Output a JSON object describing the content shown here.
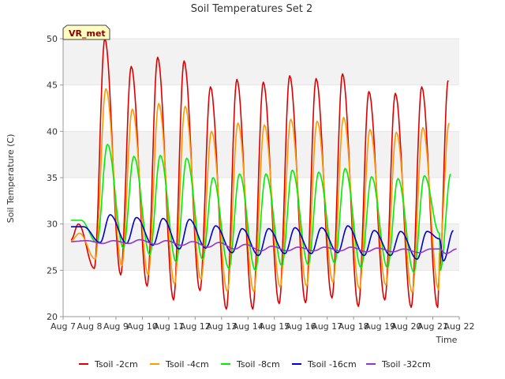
{
  "chart_data": {
    "type": "line",
    "title": "Soil Temperatures Set 2",
    "xlabel": "Time",
    "ylabel": "Soil Temperature (C)",
    "annotation": "VR_met",
    "xlim": [
      7.0,
      22.0
    ],
    "ylim": [
      20,
      50
    ],
    "x_ticks": [
      7,
      8,
      9,
      10,
      11,
      12,
      13,
      14,
      15,
      16,
      17,
      18,
      19,
      20,
      21,
      22
    ],
    "x_tick_labels": [
      "Aug 7",
      "Aug 8",
      "Aug 9",
      "Aug 10",
      "Aug 11",
      "Aug 12",
      "Aug 13",
      "Aug 14",
      "Aug 15",
      "Aug 16",
      "Aug 17",
      "Aug 18",
      "Aug 19",
      "Aug 20",
      "Aug 21",
      "Aug 22"
    ],
    "y_ticks": [
      20,
      25,
      30,
      35,
      40,
      45,
      50
    ],
    "grid": "horizontal bands",
    "legend_position": "bottom",
    "days": [
      7,
      8,
      9,
      10,
      11,
      12,
      13,
      14,
      15,
      16,
      17,
      18,
      19,
      20,
      21
    ],
    "series": [
      {
        "name": "Tsoil -2cm",
        "color": "#dd0000",
        "start": 28.3,
        "end": 25.0,
        "end_x": 21.25,
        "max_x_offset": 0.58,
        "min_x_offset": 0.18,
        "daily_max": [
          30.0,
          50.0,
          47.0,
          48.0,
          47.6,
          44.8,
          45.6,
          45.3,
          46.0,
          45.7,
          46.2,
          44.3,
          44.1,
          44.8,
          45.5
        ],
        "daily_min": [
          28.0,
          25.2,
          24.5,
          23.3,
          21.8,
          22.8,
          20.8,
          20.8,
          21.4,
          21.5,
          22.0,
          21.1,
          21.8,
          21.0,
          21.0
        ]
      },
      {
        "name": "Tsoil -4cm",
        "color": "#ff9900",
        "start": 28.2,
        "end": 26.8,
        "end_x": 21.25,
        "max_x_offset": 0.62,
        "min_x_offset": 0.22,
        "daily_max": [
          29.0,
          44.6,
          42.4,
          43.0,
          42.7,
          40.0,
          40.9,
          40.7,
          41.3,
          41.1,
          41.5,
          40.2,
          39.9,
          40.4,
          40.9
        ],
        "daily_min": [
          28.0,
          26.2,
          25.5,
          24.5,
          23.5,
          24.0,
          22.7,
          22.7,
          23.2,
          23.3,
          23.7,
          23.0,
          23.4,
          22.6,
          22.9
        ]
      },
      {
        "name": "Tsoil -8cm",
        "color": "#00ee00",
        "start": 30.4,
        "end": 29.0,
        "end_x": 21.25,
        "max_x_offset": 0.68,
        "min_x_offset": 0.28,
        "daily_max": [
          30.4,
          38.6,
          37.3,
          37.4,
          37.1,
          35.0,
          35.4,
          35.4,
          35.8,
          35.6,
          36.0,
          35.1,
          34.9,
          35.2,
          35.4
        ],
        "daily_min": [
          29.0,
          28.0,
          27.4,
          26.7,
          25.9,
          26.2,
          25.2,
          25.0,
          25.5,
          25.6,
          25.8,
          25.3,
          25.3,
          24.8,
          25.0
        ]
      },
      {
        "name": "Tsoil -16cm",
        "color": "#0000cc",
        "start": 29.7,
        "end": 28.4,
        "end_x": 21.25,
        "max_x_offset": 0.78,
        "min_x_offset": 0.4,
        "daily_max": [
          29.7,
          31.0,
          30.7,
          30.6,
          30.5,
          29.8,
          29.5,
          29.5,
          29.6,
          29.6,
          29.8,
          29.3,
          29.2,
          29.2,
          29.3
        ],
        "daily_min": [
          28.0,
          28.0,
          27.9,
          27.7,
          27.3,
          27.4,
          26.9,
          26.6,
          26.8,
          26.8,
          26.9,
          26.6,
          26.6,
          26.2,
          26.0
        ]
      },
      {
        "name": "Tsoil -32cm",
        "color": "#9933cc",
        "start": 28.1,
        "end": 27.3,
        "end_x": 21.25,
        "max_x_offset": 0.9,
        "min_x_offset": 0.5,
        "daily_max": [
          28.2,
          28.2,
          28.3,
          28.2,
          28.1,
          28.0,
          27.8,
          27.6,
          27.5,
          27.5,
          27.5,
          27.4,
          27.3,
          27.3,
          27.3
        ],
        "daily_min": [
          27.8,
          27.9,
          27.9,
          27.8,
          27.7,
          27.5,
          27.3,
          27.1,
          27.1,
          27.1,
          27.1,
          27.0,
          27.0,
          26.9,
          26.8
        ]
      }
    ]
  }
}
